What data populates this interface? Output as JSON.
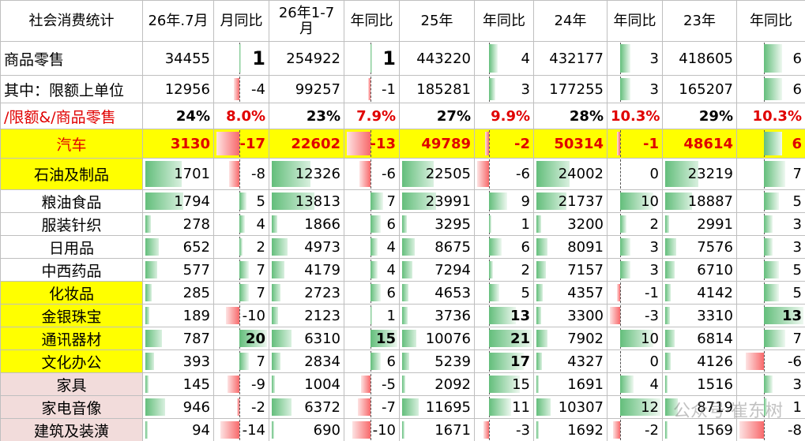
{
  "table": {
    "header": [
      "社会消费统计",
      "26年.7月",
      "月同比",
      "26年1-7月",
      "年同比",
      "25年",
      "年同比",
      "24年",
      "年同比",
      "23年",
      "年同比"
    ],
    "rows": [
      {
        "label": "商品零售",
        "cells": [
          34455,
          1,
          254922,
          1,
          443220,
          4,
          432177,
          3,
          418605,
          6
        ]
      },
      {
        "label": "其中：限额上单位",
        "cells": [
          12956,
          -4,
          99257,
          -1,
          185281,
          3,
          177255,
          3,
          165207,
          6
        ]
      },
      {
        "label": "/限额&/商品零售",
        "cells": [
          "24%",
          "8.0%",
          "23%",
          "7.9%",
          "27%",
          "9.9%",
          "28%",
          "10.3%",
          "29%",
          "10.3%"
        ]
      },
      {
        "label": "汽车",
        "cells": [
          3130,
          -17,
          22602,
          -13,
          49789,
          -2,
          50314,
          -1,
          48614,
          6
        ]
      },
      {
        "label": "石油及制品",
        "cells": [
          1701,
          -8,
          12326,
          -6,
          22505,
          -6,
          24002,
          0,
          23219,
          7
        ]
      },
      {
        "label": "粮油食品",
        "cells": [
          1794,
          5,
          13813,
          7,
          23991,
          9,
          21737,
          10,
          18887,
          5
        ]
      },
      {
        "label": "服装针织",
        "cells": [
          278,
          4,
          1866,
          6,
          3295,
          1,
          3200,
          2,
          2991,
          3
        ]
      },
      {
        "label": "日用品",
        "cells": [
          652,
          2,
          4973,
          4,
          8675,
          6,
          8091,
          3,
          7576,
          3
        ]
      },
      {
        "label": "中西药品",
        "cells": [
          577,
          7,
          4179,
          4,
          7294,
          2,
          7157,
          3,
          6710,
          5
        ]
      },
      {
        "label": "化妆品",
        "cells": [
          285,
          7,
          2723,
          6,
          4653,
          5,
          4357,
          -1,
          4142,
          5
        ]
      },
      {
        "label": "金银珠宝",
        "cells": [
          189,
          -10,
          2123,
          1,
          3736,
          13,
          3300,
          -3,
          3310,
          13
        ]
      },
      {
        "label": "通讯器材",
        "cells": [
          787,
          20,
          6310,
          15,
          10076,
          21,
          7902,
          10,
          6814,
          7
        ]
      },
      {
        "label": "文化办公",
        "cells": [
          393,
          7,
          2834,
          6,
          5239,
          17,
          4327,
          0,
          4126,
          -6
        ]
      },
      {
        "label": "家具",
        "cells": [
          145,
          -9,
          1004,
          -5,
          2092,
          15,
          1691,
          4,
          1516,
          3
        ]
      },
      {
        "label": "家电音像",
        "cells": [
          946,
          -2,
          6372,
          -7,
          11695,
          11,
          10307,
          12,
          8719,
          1
        ]
      },
      {
        "label": "建筑及装潢",
        "cells": [
          94,
          -14,
          690,
          -10,
          1671,
          -3,
          1692,
          -2,
          1569,
          -8
        ]
      }
    ]
  },
  "watermark": "公众号·崔东树"
}
